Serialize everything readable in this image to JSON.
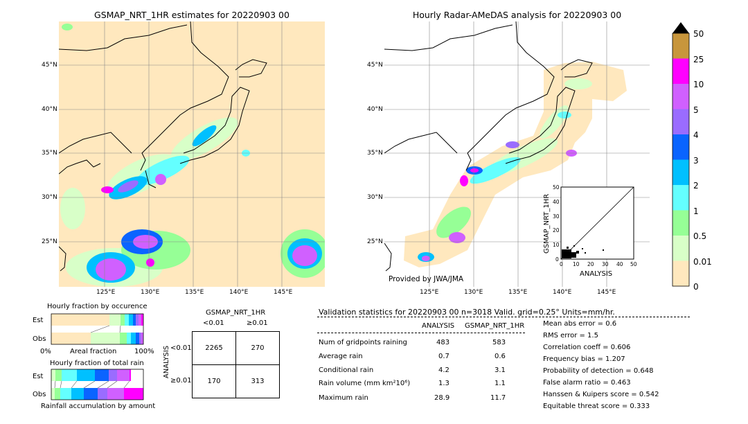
{
  "left_map": {
    "title": "GSMAP_NRT_1HR estimates for 20220903 00",
    "lat_labels": [
      "45°N",
      "40°N",
      "35°N",
      "30°N",
      "25°N"
    ],
    "lon_labels": [
      "125°E",
      "130°E",
      "135°E",
      "140°E",
      "145°E"
    ]
  },
  "right_map": {
    "title": "Hourly Radar-AMeDAS analysis for 20220903 00",
    "lat_labels": [
      "45°N",
      "40°N",
      "35°N",
      "30°N",
      "25°N"
    ],
    "lon_labels": [
      "125°E",
      "130°E",
      "135°E",
      "140°E",
      "145°E"
    ],
    "credit": "Provided by JWA/JMA"
  },
  "scatter": {
    "ylabel": "GSMAP_NRT_1HR",
    "xlabel": "ANALYSIS",
    "ticks": [
      "0",
      "10",
      "20",
      "30",
      "40",
      "50"
    ]
  },
  "colorbar": {
    "labels": [
      "50",
      "25",
      "10",
      "5",
      "4",
      "3",
      "2",
      "1",
      "0.5",
      "0.01",
      "0"
    ],
    "colors": [
      "#c8963c",
      "#ff00ff",
      "#d060ff",
      "#9a6cff",
      "#0a64ff",
      "#00c0ff",
      "#64ffff",
      "#96ff96",
      "#d8ffc8",
      "#ffe8be"
    ]
  },
  "fraction_occurrence": {
    "title": "Hourly fraction by occurence",
    "rows": [
      "Est",
      "Obs"
    ],
    "axis_left": "0%",
    "axis_mid": "Areal fraction",
    "axis_right": "100%"
  },
  "fraction_total": {
    "title": "Hourly fraction of total rain",
    "rows": [
      "Est",
      "Obs"
    ],
    "footer": "Rainfall accumulation by amount"
  },
  "contingency": {
    "header": "GSMAP_NRT_1HR",
    "col_labels": [
      "<0.01",
      "≥0.01"
    ],
    "row_title": "ANALYSIS",
    "row_labels": [
      "<0.01",
      "≥0.01"
    ],
    "cells": [
      [
        "2265",
        "270"
      ],
      [
        "170",
        "313"
      ]
    ]
  },
  "validation": {
    "header": "Validation statistics for 20220903 00  n=3018 Valid. grid=0.25° Units=mm/hr.",
    "col_analysis": "ANALYSIS",
    "col_gsmap": "GSMAP_NRT_1HR",
    "rows": [
      {
        "label": "Num of gridpoints raining",
        "analysis": "483",
        "gsmap": "583"
      },
      {
        "label": "Average rain",
        "analysis": "0.7",
        "gsmap": "0.6"
      },
      {
        "label": "Conditional rain",
        "analysis": "4.2",
        "gsmap": "3.1"
      },
      {
        "label": "Rain volume (mm km²10⁶)",
        "analysis": "1.3",
        "gsmap": "1.1"
      },
      {
        "label": "Maximum rain",
        "analysis": "28.9",
        "gsmap": "11.7"
      }
    ],
    "scores": [
      "Mean abs error =    0.6",
      "RMS error =    1.5",
      "Correlation coeff =  0.606",
      "Frequency bias =  1.207",
      "Probability of detection =  0.648",
      "False alarm ratio =  0.463",
      "Hanssen & Kuipers score =  0.542",
      "Equitable threat score =  0.333"
    ]
  },
  "chart_data": {
    "type": "table",
    "title": "Validation statistics for 20220903 00",
    "columns": [
      "ANALYSIS",
      "GSMAP_NRT_1HR"
    ],
    "rows": [
      "Num of gridpoints raining",
      "Average rain",
      "Conditional rain",
      "Rain volume (mm km²10⁶)",
      "Maximum rain"
    ],
    "values": [
      [
        483,
        583
      ],
      [
        0.7,
        0.6
      ],
      [
        4.2,
        3.1
      ],
      [
        1.3,
        1.1
      ],
      [
        28.9,
        11.7
      ]
    ],
    "contingency_table": [
      [
        2265,
        270
      ],
      [
        170,
        313
      ]
    ],
    "scores": {
      "mean_abs_error": 0.6,
      "rms_error": 1.5,
      "correlation_coeff": 0.606,
      "frequency_bias": 1.207,
      "probability_of_detection": 0.648,
      "false_alarm_ratio": 0.463,
      "hanssen_kuipers_score": 0.542,
      "equitable_threat_score": 0.333
    },
    "scatter_axes": {
      "xlabel": "ANALYSIS",
      "ylabel": "GSMAP_NRT_1HR",
      "xlim": [
        0,
        50
      ],
      "ylim": [
        0,
        50
      ]
    }
  }
}
